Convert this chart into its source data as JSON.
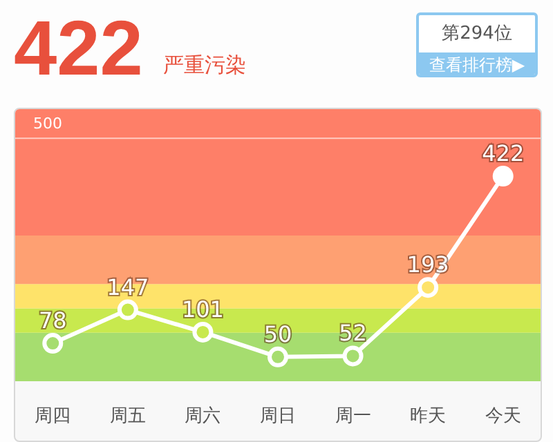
{
  "chart_data": {
    "type": "line",
    "title": "422",
    "subtitle": "严重污染",
    "annotations": [
      "第294位",
      "查看排行榜▶"
    ],
    "categories": [
      "周四",
      "周五",
      "周六",
      "周日",
      "周一",
      "昨天",
      "今天"
    ],
    "values": [
      78,
      147,
      101,
      50,
      52,
      193,
      422
    ],
    "color": "#ffffff",
    "marker": "circle",
    "data_labels": true,
    "ref_lines": [
      {
        "axis": "y",
        "value": 500,
        "label": "500",
        "color": "#ffffff"
      }
    ],
    "bands": [
      {
        "axis": "y",
        "from": 0,
        "to": 100,
        "color": "#a6dd6f"
      },
      {
        "axis": "y",
        "from": 100,
        "to": 150,
        "color": "#c8e94e"
      },
      {
        "axis": "y",
        "from": 150,
        "to": 200,
        "color": "#fee36a"
      },
      {
        "axis": "y",
        "from": 200,
        "to": 300,
        "color": "#fea072"
      },
      {
        "axis": "y",
        "from": 300,
        "to": 560,
        "color": "#fe7f68"
      }
    ]
  }
}
